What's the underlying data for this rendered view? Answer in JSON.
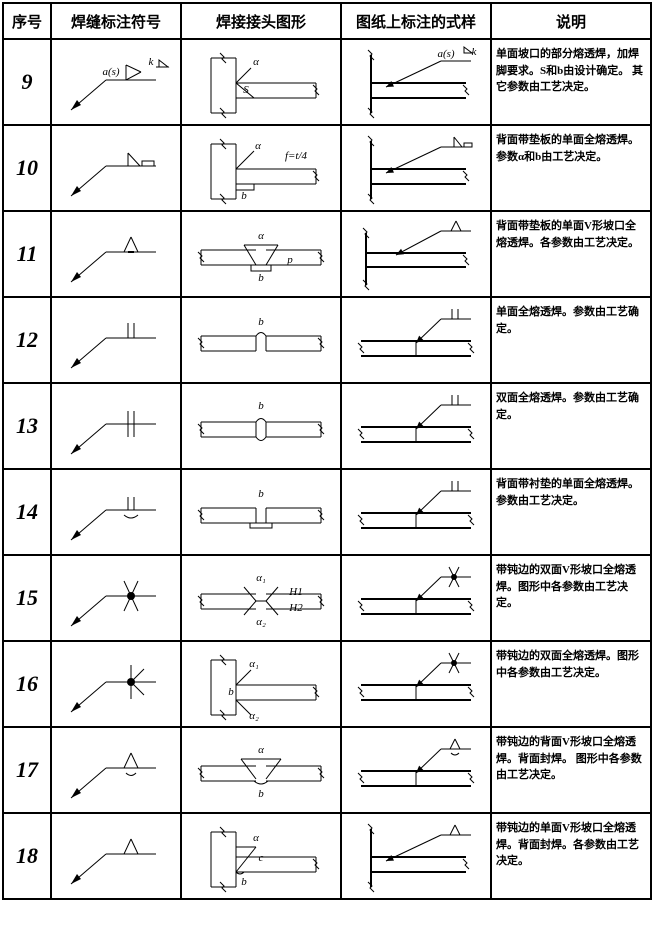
{
  "headers": {
    "seq": "序号",
    "symbol": "焊缝标注符号",
    "joint": "焊接接头图形",
    "drawing": "图纸上标注的式样",
    "desc": "说明"
  },
  "rows": [
    {
      "seq": "9",
      "desc": "单面坡口的部分熔透焊，加焊脚要求。S和b由设计确定。\n其它参数由工艺决定。",
      "sym_type": "bevel_flag_as_k",
      "joint_type": "single_bevel_partial",
      "dwg_type": "tee_as_k",
      "labels": {
        "alpha": "α",
        "as": "a(s)",
        "k": "k",
        "S": "S",
        "b": "b"
      }
    },
    {
      "seq": "10",
      "desc": "背面带垫板的单面全熔透焊。\n参数α和b由工艺决定。",
      "sym_type": "bevel_backing",
      "joint_type": "single_bevel_backing",
      "dwg_type": "tee_backing",
      "labels": {
        "alpha": "α",
        "f": "f=t/4",
        "b": "b",
        "t": "t"
      }
    },
    {
      "seq": "11",
      "desc": "背面带垫板的单面V形坡口全熔透焊。各参数由工艺决定。",
      "sym_type": "vee_backing",
      "joint_type": "vee_groove_backing",
      "dwg_type": "butt_plate",
      "labels": {
        "alpha": "α",
        "p": "p",
        "b": "b"
      }
    },
    {
      "seq": "12",
      "desc": "单面全熔透焊。参数由工艺确定。",
      "sym_type": "square_single",
      "joint_type": "square_single_weld",
      "dwg_type": "butt_simple",
      "labels": {
        "b": "b"
      }
    },
    {
      "seq": "13",
      "desc": "双面全熔透焊。参数由工艺确定。",
      "sym_type": "square_double",
      "joint_type": "square_double_weld",
      "dwg_type": "butt_simple",
      "labels": {
        "b": "b"
      }
    },
    {
      "seq": "14",
      "desc": "背面带衬垫的单面全熔透焊。参数由工艺决定。",
      "sym_type": "square_concave",
      "joint_type": "square_backing",
      "dwg_type": "butt_simple",
      "labels": {
        "b": "b"
      }
    },
    {
      "seq": "15",
      "desc": "带钝边的双面V形坡口全熔透焊。图形中各参数由工艺决定。",
      "sym_type": "x_dot",
      "joint_type": "double_vee",
      "dwg_type": "butt_dot",
      "labels": {
        "a1": "α₁",
        "a2": "α₂",
        "b": "b",
        "H1": "H1",
        "H2": "H2"
      }
    },
    {
      "seq": "16",
      "desc": "带钝边的双面全熔透焊。图形中各参数由工艺决定。",
      "sym_type": "k_dot",
      "joint_type": "double_bevel",
      "dwg_type": "butt_dot",
      "labels": {
        "a1": "α₁",
        "a2": "α₂",
        "b": "b"
      }
    },
    {
      "seq": "17",
      "desc": "带钝边的背面V形坡口全熔透焊。背面封焊。\n图形中各参数由工艺决定。",
      "sym_type": "vee_back",
      "joint_type": "vee_sealed",
      "dwg_type": "butt_vee",
      "labels": {
        "alpha": "α",
        "b": "b"
      }
    },
    {
      "seq": "18",
      "desc": "带钝边的单面V形坡口全熔透焊。背面封焊。各参数由工艺决定。",
      "sym_type": "vee_plain",
      "joint_type": "vee_root",
      "dwg_type": "tee_vee",
      "labels": {
        "alpha": "α",
        "c": "c",
        "b": "b"
      }
    }
  ]
}
